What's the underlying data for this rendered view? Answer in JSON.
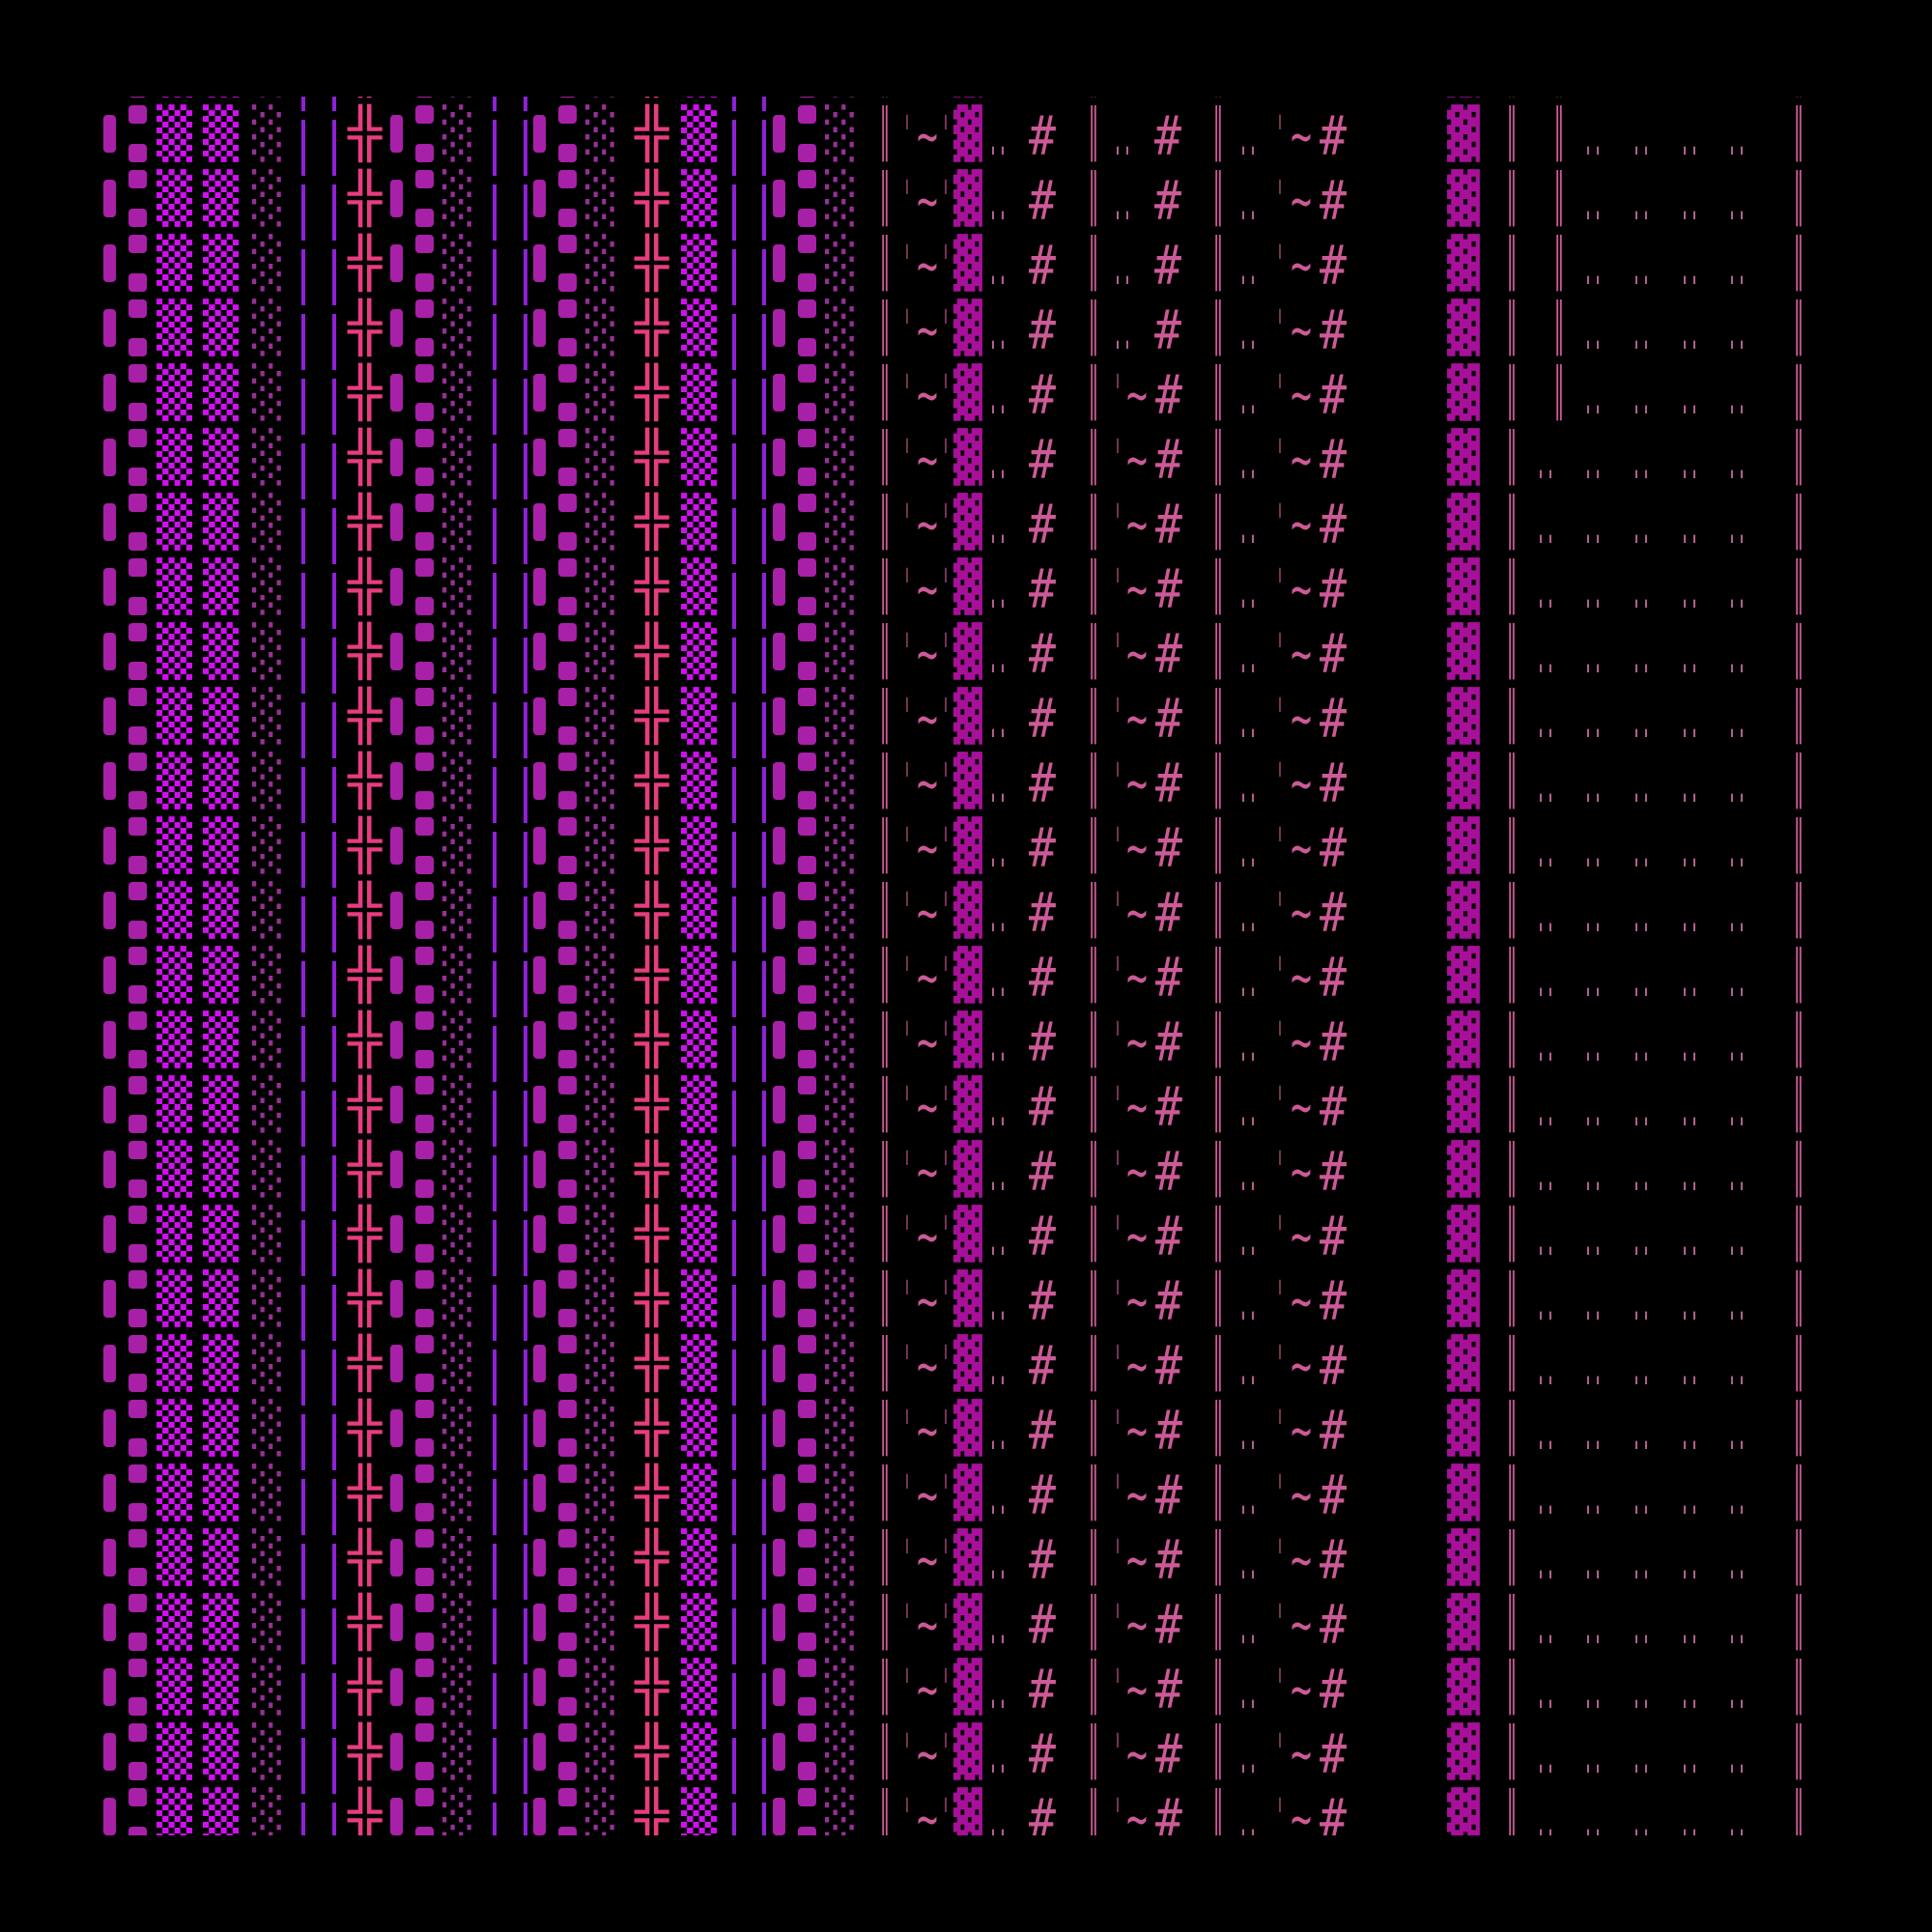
{
  "colors": {
    "background": "#000000",
    "purple_bar": "#9020d8",
    "violet_block": "#a820a8",
    "magenta_dots": "#d010f0",
    "dim_dots": "#963096",
    "pink_cross": "#e83c80",
    "pink_text": "#cc5a96",
    "dot_text": "#b06090",
    "dense_block": "#a8109a"
  },
  "rows": [
    "▮⁚▒▒░││╬▮⁚░││▮⁚░╬▒││▮⁚░ ║'~'▓.. #║.. #║..'~#▓║║.. .. .. ..  ║",
    "▮⁚▒▒░││╬▮⁚░││▮⁚░╬▒││▮⁚░ ║'~'▓.. #║.. #║..'~#▓║║.. .. .. ..  ║",
    "▮⁚▒▒░││╬▮⁚░││▮⁚░╬▒││▮⁚░ ║'~'▓.. #║.. #║..'~#▓║║.. .. .. ..  ║",
    "▮⁚▒▒░││╬▮⁚░││▮⁚░╬▒││▮⁚░ ║'~'▓.. #║.. #║..'~#▓║║.. .. .. ..  ║",
    "▮⁚▒▒░││╬▮⁚░││▮⁚░╬▒││▮⁚░ ║'~'▓.. #║.. #║..'~#▓║║.. .. .. ..  ║",
    "▮⁚▒▒░││╬▮⁚░││▮⁚░╬▒││▮⁚░ ║'~'▓.. #║'~#║..'~#▓║║.. .. .. ..  ║",
    "▮⁚▒▒░││╬▮⁚░││▮⁚░╬▒││▮⁚░ ║'~'▓.. #║'~#║..'~#▓║.. .. .. .. ..  ║",
    "▮⁚▒▒░││╬▮⁚░││▮⁚░╬▒││▮⁚░ ║'~'▓.. #║'~#║..'~#▓║.. .. .. .. ..  ║",
    "▮⁚▒▒░││╬▮⁚░││▮⁚░╬▒││▮⁚░ ║'~'▓.. #║'~#║..'~#▓║.. .. .. .. ..  ║",
    "▮⁚▒▒░││╬▮⁚░││▮⁚░╬▒││▮⁚░ ║'~'▓.. #║'~#║..'~#▓║.. .. .. .. ..  ║",
    "▮⁚▒▒░││╬▮⁚░││▮⁚░╬▒││▮⁚░ ║'~'▓.. #║'~#║..'~#▓║.. .. .. .. ..  ║",
    "▮⁚▒▒░││╬▮⁚░││▮⁚░╬▒││▮⁚░ ║'~'▓.. #║'~#║..'~#▓║.. .. .. .. ..  ║",
    "▮⁚▒▒░││╬▮⁚░││▮⁚░╬▒││▮⁚░ ║'~'▓.. #║'~#║..'~#▓║.. .. .. .. ..  ║",
    "▮⁚▒▒░││╬▮⁚░││▮⁚░╬▒││▮⁚░ ║'~'▓.. #║'~#║..'~#▓║.. .. .. .. ..  ║",
    "▮⁚▒▒░││╬▮⁚░││▮⁚░╬▒││▮⁚░ ║'~'▓.. #║'~#║..'~#▓║.. .. .. .. ..  ║",
    "▮⁚▒▒░││╬▮⁚░││▮⁚░╬▒││▮⁚░ ║'~'▓.. #║'~#║..'~#▓║.. .. .. .. ..  ║",
    "▮⁚▒▒░││╬▮⁚░││▮⁚░╬▒││▮⁚░ ║'~'▓.. #║'~#║..'~#▓║.. .. .. .. ..  ║",
    "▮⁚▒▒░││╬▮⁚░││▮⁚░╬▒││▮⁚░ ║'~'▓.. #║'~#║..'~#▓║.. .. .. .. ..  ║",
    "▮⁚▒▒░││╬▮⁚░││▮⁚░╬▒││▮⁚░ ║'~'▓.. #║'~#║..'~#▓║.. .. .. .. ..  ║",
    "▮⁚▒▒░││╬▮⁚░││▮⁚░╬▒││▮⁚░ ║'~'▓.. #║'~#║..'~#▓║.. .. .. .. ..  ║",
    "▮⁚▒▒░││╬▮⁚░││▮⁚░╬▒││▮⁚░ ║'~'▓.. #║'~#║..'~#▓║.. .. .. .. ..  ║",
    "▮⁚▒▒░││╬▮⁚░││▮⁚░╬▒││▮⁚░ ║'~'▓.. #║'~#║..'~#▓║.. .. .. .. ..  ║",
    "▮⁚▒▒░││╬▮⁚░││▮⁚░╬▒││▮⁚░ ║'~'▓.. #║'~#║..'~#▓║.. .. .. .. ..  ║",
    "▮⁚▒▒░││╬▮⁚░││▮⁚░╬▒││▮⁚░ ║'~'▓.. #║'~#║..'~#▓║.. .. .. .. ..  ║",
    "▮⁚▒▒░││╬▮⁚░││▮⁚░╬▒││▮⁚░ ║'~'▓.. #║'~#║..'~#▓║.. .. .. .. ..  ║",
    "▮⁚▒▒░││╬▮⁚░││▮⁚░╬▒││▮⁚░ ║'~'▓.. #║'~#║..'~#▓║.. .. .. .. ..  ║",
    "▮⁚▒▒░││╬▮⁚░││▮⁚░╬▒││▮⁚░ ║'~'▓.. #║'~#║..'~#▓║.. .. .. .. ..  ║",
    "▮⁚▒▒░││╬▮⁚░││▮⁚░╬▒││▮⁚░ ║'~'▓.. #║'~#║..'~#▓║.. .. .. .. ..  ║"
  ]
}
